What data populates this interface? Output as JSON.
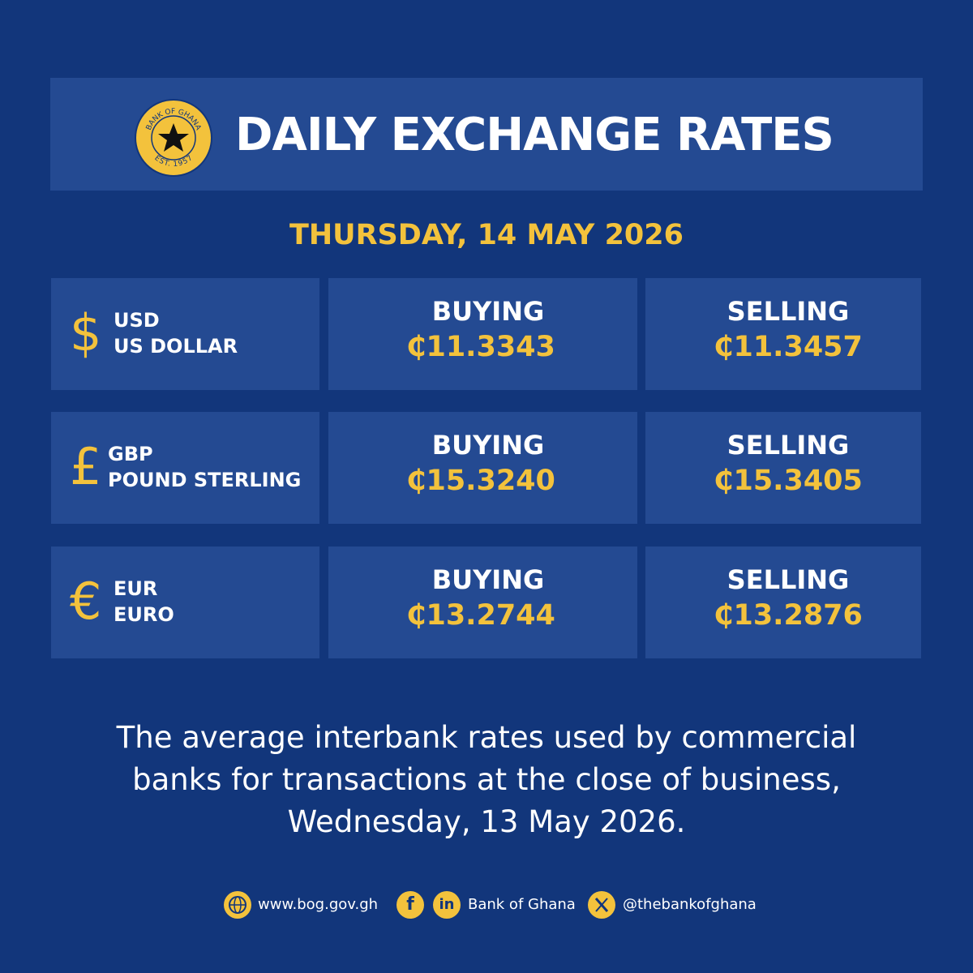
{
  "header": {
    "logo_top": "BANK OF GHANA",
    "logo_bottom": "EST. 1957",
    "title": "DAILY EXCHANGE RATES"
  },
  "date": "THURSDAY, 14 MAY 2026",
  "rates": [
    {
      "symbol": "$",
      "code": "USD",
      "name": "US DOLLAR",
      "buying_label": "BUYING",
      "buying": "₵11.3343",
      "selling_label": "SELLING",
      "selling": "₵11.3457"
    },
    {
      "symbol": "£",
      "code": "GBP",
      "name": "POUND STERLING",
      "buying_label": "BUYING",
      "buying": "₵15.3240",
      "selling_label": "SELLING",
      "selling": "₵15.3405"
    },
    {
      "symbol": "€",
      "code": "EUR",
      "name": "EURO",
      "buying_label": "BUYING",
      "buying": "₵13.2744",
      "selling_label": "SELLING",
      "selling": "₵13.2876"
    }
  ],
  "note_lines": [
    "The average interbank rates used by commercial",
    "banks for transactions at the close of business,",
    "Wednesday, 13 May 2026."
  ],
  "footer": {
    "website": "www.bog.gov.gh",
    "facebook_icon": "f",
    "linkedin_icon": "in",
    "social_name": "Bank of Ghana",
    "handle": "@thebankofghana"
  }
}
